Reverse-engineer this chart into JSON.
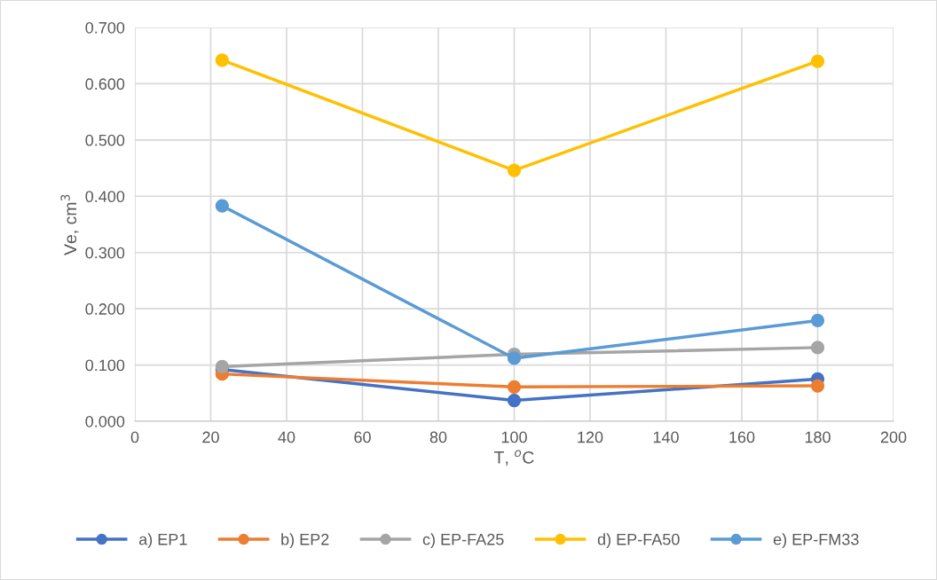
{
  "chart_data": {
    "type": "line",
    "xlabel": "T, $^{o}$C",
    "ylabel": "Ve, cm$^{3}$",
    "x": [
      23,
      100,
      180
    ],
    "series": [
      {
        "name": "a) EP1",
        "color": "#4472c4",
        "values": [
          0.092,
          0.037,
          0.075
        ]
      },
      {
        "name": "b) EP2",
        "color": "#ed7d31",
        "values": [
          0.084,
          0.061,
          0.063
        ]
      },
      {
        "name": "c) EP-FA25",
        "color": "#a5a5a5",
        "values": [
          0.097,
          0.119,
          0.131
        ]
      },
      {
        "name": "d) EP-FA50",
        "color": "#ffc000",
        "values": [
          0.642,
          0.446,
          0.64
        ]
      },
      {
        "name": "e) EP-FM33",
        "color": "#5b9bd5",
        "values": [
          0.383,
          0.112,
          0.179
        ]
      }
    ],
    "xlim": [
      0,
      200
    ],
    "xticks": [
      0,
      20,
      40,
      60,
      80,
      100,
      120,
      140,
      160,
      180,
      200
    ],
    "ylim": [
      0,
      0.7
    ],
    "yticks": [
      {
        "value": 0,
        "label": "0.000"
      },
      {
        "value": 0.1,
        "label": "0.100"
      },
      {
        "value": 0.2,
        "label": "0.200"
      },
      {
        "value": 0.3,
        "label": "0.300"
      },
      {
        "value": 0.4,
        "label": "0.400"
      },
      {
        "value": 0.5,
        "label": "0.500"
      },
      {
        "value": 0.6,
        "label": "0.600"
      },
      {
        "value": 0.7,
        "label": "0.700"
      }
    ],
    "grid": true,
    "legend": "bottom",
    "marker": "circle",
    "line_style": "solid"
  }
}
